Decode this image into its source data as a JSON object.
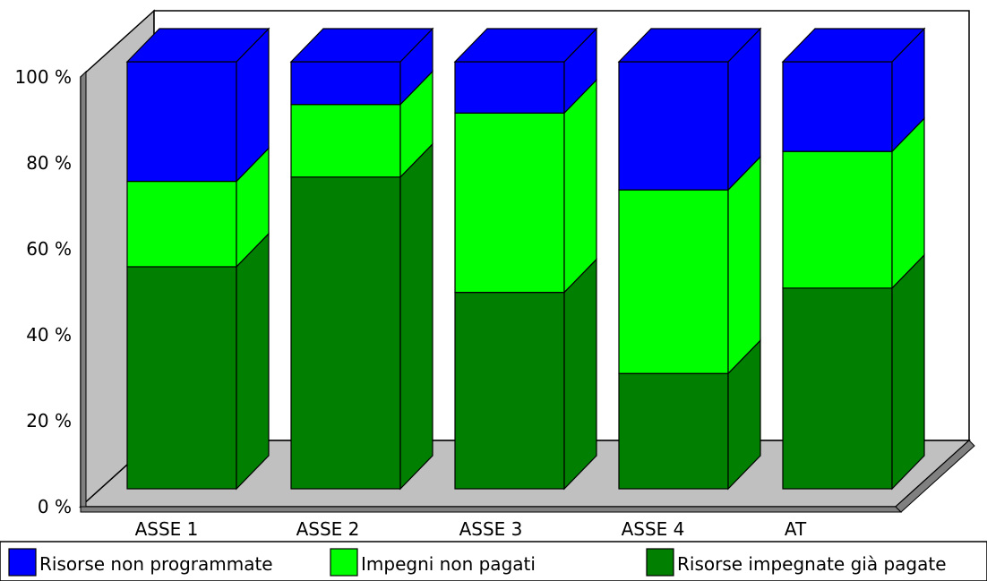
{
  "chart_data": {
    "type": "bar",
    "stacked": true,
    "three_d": true,
    "title": "",
    "xlabel": "",
    "ylabel": "",
    "categories": [
      "ASSE 1",
      "ASSE 2",
      "ASSE 3",
      "ASSE 4",
      "AT"
    ],
    "ylim": [
      0,
      100
    ],
    "y_ticks": [
      "0 %",
      "20 %",
      "40 %",
      "60 %",
      "80 %",
      "100 %"
    ],
    "series": [
      {
        "name": "Risorse impegnate già pagate",
        "color": "#007f00",
        "values": [
          52,
          73,
          46,
          27,
          47
        ]
      },
      {
        "name": "Impegni non pagati",
        "color": "#00ff00",
        "values": [
          20,
          17,
          42,
          43,
          32
        ]
      },
      {
        "name": "Risorse non programmate",
        "color": "#0000ff",
        "values": [
          28,
          10,
          12,
          30,
          21
        ]
      }
    ],
    "legend": {
      "position": "bottom",
      "order": [
        2,
        1,
        0
      ]
    },
    "grid": false
  }
}
